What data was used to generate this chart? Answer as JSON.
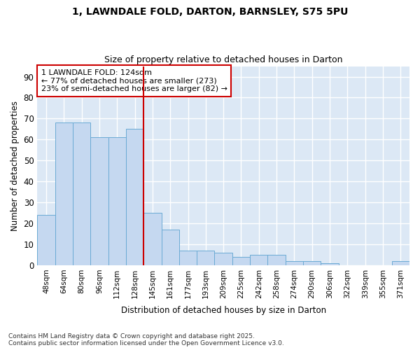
{
  "title1": "1, LAWNDALE FOLD, DARTON, BARNSLEY, S75 5PU",
  "title2": "Size of property relative to detached houses in Darton",
  "xlabel": "Distribution of detached houses by size in Darton",
  "ylabel": "Number of detached properties",
  "categories": [
    "48sqm",
    "64sqm",
    "80sqm",
    "96sqm",
    "112sqm",
    "128sqm",
    "145sqm",
    "161sqm",
    "177sqm",
    "193sqm",
    "209sqm",
    "225sqm",
    "242sqm",
    "258sqm",
    "274sqm",
    "290sqm",
    "306sqm",
    "322sqm",
    "339sqm",
    "355sqm",
    "371sqm"
  ],
  "values": [
    24,
    68,
    68,
    61,
    61,
    65,
    25,
    17,
    7,
    7,
    6,
    4,
    5,
    5,
    2,
    2,
    1,
    0,
    0,
    0,
    2
  ],
  "bar_color": "#c5d8f0",
  "bar_edge_color": "#6aaad4",
  "vline_x_index": 5,
  "vline_color": "#cc0000",
  "annotation_title": "1 LAWNDALE FOLD: 124sqm",
  "annotation_line1": "← 77% of detached houses are smaller (273)",
  "annotation_line2": "23% of semi-detached houses are larger (82) →",
  "annotation_box_color": "#cc0000",
  "ylim": [
    0,
    95
  ],
  "yticks": [
    0,
    10,
    20,
    30,
    40,
    50,
    60,
    70,
    80,
    90
  ],
  "footer1": "Contains HM Land Registry data © Crown copyright and database right 2025.",
  "footer2": "Contains public sector information licensed under the Open Government Licence v3.0.",
  "bg_color": "#ffffff",
  "plot_bg_color": "#dce8f5"
}
